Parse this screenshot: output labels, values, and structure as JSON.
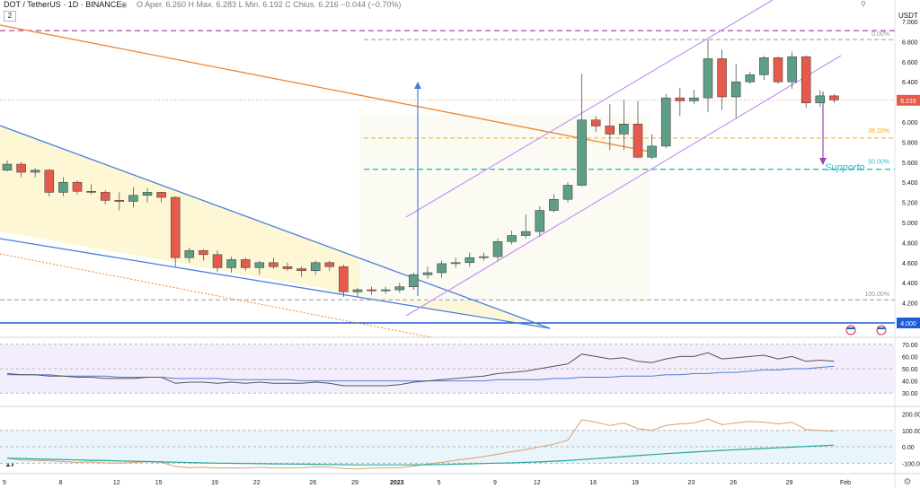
{
  "header": {
    "symbol": "DOT / TetherUS · 1D · BINANCE",
    "ohlc": "O Aper. 6.260  H Max. 6.283  L Min. 6.192  C Chius. 6.216  −0.044 (−0.70%)",
    "badge": "2",
    "icons": "eye-icon, settings-icon"
  },
  "price_axis": {
    "currency": "USDT",
    "ticks": [
      "7.000",
      "6.800",
      "6.600",
      "6.400",
      "6.200",
      "6.000",
      "5.800",
      "5.600",
      "5.400",
      "5.200",
      "5.000",
      "4.800",
      "4.600",
      "4.400",
      "4.200"
    ],
    "last_price": "6.216",
    "level_label": "4.000"
  },
  "time_axis": [
    "5",
    "8",
    "12",
    "15",
    "19",
    "22",
    "26",
    "29",
    "2023",
    "5",
    "9",
    "12",
    "16",
    "19",
    "23",
    "26",
    "29",
    "Feb"
  ],
  "annotations": {
    "fib_0": "0.00%",
    "fib_382": "38.20%",
    "fib_50": "50.00%",
    "fib_100": "100.00%",
    "support": "Supporto"
  },
  "rsi_axis": [
    "70.00",
    "60.00",
    "50.00",
    "40.00",
    "30.00"
  ],
  "cci_axis": [
    "200.00",
    "100.00",
    "0.00",
    "-100.00"
  ],
  "colors": {
    "up": "#5d9e84",
    "down": "#e55a4b",
    "channel": "#c38af0",
    "trend": "#f0832f",
    "wedge": "#4a7fd8",
    "support": "#2bbcc9",
    "fib": "#f5a623",
    "level": "#1e5bd8"
  },
  "chart_data": [
    {
      "type": "candlestick",
      "title": "DOT / TetherUS · 1D · BINANCE",
      "ylim": [
        4.0,
        7.0
      ],
      "candles": [
        [
          5.52,
          5.62,
          5.51,
          5.58
        ],
        [
          5.58,
          5.6,
          5.45,
          5.5
        ],
        [
          5.5,
          5.54,
          5.45,
          5.52
        ],
        [
          5.52,
          5.53,
          5.26,
          5.3
        ],
        [
          5.3,
          5.45,
          5.26,
          5.4
        ],
        [
          5.4,
          5.42,
          5.28,
          5.31
        ],
        [
          5.31,
          5.38,
          5.28,
          5.3
        ],
        [
          5.3,
          5.32,
          5.18,
          5.22
        ],
        [
          5.22,
          5.3,
          5.12,
          5.21
        ],
        [
          5.21,
          5.35,
          5.15,
          5.27
        ],
        [
          5.27,
          5.34,
          5.2,
          5.3
        ],
        [
          5.3,
          5.3,
          5.2,
          5.25
        ],
        [
          5.25,
          5.26,
          4.56,
          4.65
        ],
        [
          4.65,
          4.75,
          4.6,
          4.72
        ],
        [
          4.72,
          4.73,
          4.62,
          4.68
        ],
        [
          4.68,
          4.72,
          4.51,
          4.55
        ],
        [
          4.55,
          4.66,
          4.5,
          4.63
        ],
        [
          4.63,
          4.65,
          4.52,
          4.55
        ],
        [
          4.55,
          4.62,
          4.48,
          4.6
        ],
        [
          4.6,
          4.65,
          4.54,
          4.56
        ],
        [
          4.56,
          4.6,
          4.52,
          4.54
        ],
        [
          4.54,
          4.56,
          4.46,
          4.52
        ],
        [
          4.52,
          4.62,
          4.48,
          4.6
        ],
        [
          4.6,
          4.62,
          4.52,
          4.56
        ],
        [
          4.56,
          4.58,
          4.26,
          4.31
        ],
        [
          4.31,
          4.35,
          4.26,
          4.33
        ],
        [
          4.33,
          4.36,
          4.28,
          4.32
        ],
        [
          4.32,
          4.36,
          4.29,
          4.33
        ],
        [
          4.33,
          4.4,
          4.3,
          4.36
        ],
        [
          4.36,
          4.5,
          4.33,
          4.48
        ],
        [
          4.48,
          4.56,
          4.44,
          4.5
        ],
        [
          4.5,
          4.62,
          4.45,
          4.59
        ],
        [
          4.59,
          4.65,
          4.55,
          4.6
        ],
        [
          4.6,
          4.7,
          4.56,
          4.65
        ],
        [
          4.65,
          4.7,
          4.62,
          4.66
        ],
        [
          4.66,
          4.84,
          4.62,
          4.81
        ],
        [
          4.81,
          4.92,
          4.78,
          4.87
        ],
        [
          4.87,
          5.08,
          4.84,
          4.91
        ],
        [
          4.91,
          5.16,
          4.86,
          5.12
        ],
        [
          5.12,
          5.28,
          5.1,
          5.23
        ],
        [
          5.23,
          5.4,
          5.2,
          5.37
        ],
        [
          5.37,
          6.48,
          5.36,
          6.02
        ],
        [
          6.02,
          6.06,
          5.9,
          5.96
        ],
        [
          5.96,
          6.18,
          5.72,
          5.88
        ],
        [
          5.88,
          6.22,
          5.72,
          5.98
        ],
        [
          5.98,
          6.21,
          5.64,
          5.65
        ],
        [
          5.65,
          5.88,
          5.63,
          5.76
        ],
        [
          5.76,
          6.28,
          5.74,
          6.24
        ],
        [
          6.24,
          6.34,
          6.06,
          6.21
        ],
        [
          6.21,
          6.32,
          6.18,
          6.24
        ],
        [
          6.24,
          6.82,
          6.1,
          6.63
        ],
        [
          6.63,
          6.72,
          6.12,
          6.25
        ],
        [
          6.25,
          6.58,
          6.04,
          6.4
        ],
        [
          6.4,
          6.5,
          6.38,
          6.47
        ],
        [
          6.47,
          6.66,
          6.42,
          6.64
        ],
        [
          6.64,
          6.65,
          6.38,
          6.4
        ],
        [
          6.4,
          6.7,
          6.33,
          6.65
        ],
        [
          6.65,
          6.66,
          6.14,
          6.19
        ],
        [
          6.19,
          6.32,
          6.15,
          6.26
        ],
        [
          6.26,
          6.28,
          6.19,
          6.22
        ]
      ]
    },
    {
      "type": "line",
      "ylim": [
        25,
        75
      ],
      "series": [
        {
          "values": [
            46,
            45,
            45,
            44,
            44,
            43,
            43,
            42,
            42,
            42,
            43,
            43,
            38,
            39,
            39,
            38,
            39,
            38,
            39,
            38,
            38,
            38,
            39,
            38,
            36,
            36,
            36,
            36,
            37,
            39,
            40,
            41,
            42,
            43,
            44,
            46,
            47,
            48,
            50,
            52,
            54,
            62,
            60,
            58,
            59,
            56,
            55,
            58,
            60,
            60,
            63,
            58,
            59,
            60,
            61,
            58,
            60,
            56,
            57,
            56
          ]
        },
        {
          "values": [
            45,
            45,
            45,
            45,
            44,
            44,
            44,
            44,
            43,
            43,
            43,
            43,
            42,
            42,
            42,
            42,
            41,
            41,
            41,
            41,
            41,
            40,
            40,
            40,
            40,
            40,
            40,
            40,
            40,
            40,
            40,
            40,
            40,
            40,
            40,
            41,
            41,
            41,
            41,
            42,
            42,
            43,
            43,
            43,
            44,
            44,
            44,
            45,
            45,
            46,
            46,
            47,
            47,
            48,
            49,
            49,
            50,
            50,
            51,
            52
          ]
        }
      ]
    },
    {
      "type": "line",
      "ylim": [
        -120,
        230
      ],
      "series": [
        {
          "values": [
            -70,
            -80,
            -82,
            -85,
            -90,
            -95,
            -92,
            -98,
            -100,
            -96,
            -90,
            -95,
            -120,
            -128,
            -125,
            -130,
            -128,
            -130,
            -125,
            -128,
            -130,
            -128,
            -122,
            -124,
            -132,
            -135,
            -130,
            -130,
            -128,
            -118,
            -105,
            -95,
            -82,
            -72,
            -60,
            -45,
            -30,
            -18,
            0,
            15,
            40,
            165,
            150,
            130,
            145,
            110,
            100,
            130,
            140,
            145,
            170,
            135,
            145,
            155,
            150,
            140,
            150,
            105,
            100,
            95
          ]
        },
        {
          "values": [
            -70,
            -72,
            -74,
            -76,
            -78,
            -80,
            -82,
            -84,
            -86,
            -88,
            -90,
            -92,
            -94,
            -96,
            -98,
            -100,
            -101,
            -102,
            -103,
            -104,
            -105,
            -106,
            -107,
            -108,
            -109,
            -110,
            -110,
            -110,
            -110,
            -110,
            -109,
            -108,
            -106,
            -104,
            -102,
            -100,
            -98,
            -95,
            -92,
            -88,
            -84,
            -78,
            -72,
            -66,
            -60,
            -54,
            -48,
            -42,
            -37,
            -32,
            -27,
            -22,
            -18,
            -14,
            -10,
            -6,
            -2,
            2,
            6,
            10
          ]
        }
      ]
    }
  ]
}
